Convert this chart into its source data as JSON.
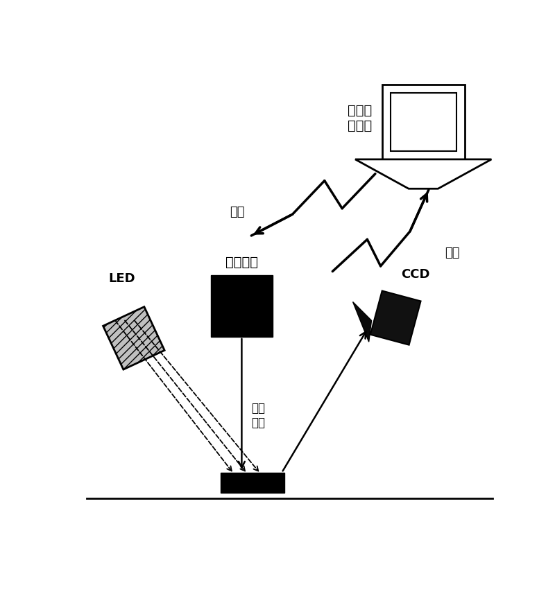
{
  "bg_color": "#ffffff",
  "labels": {
    "computer": "图像处\n理模块",
    "galvo": "振镜系统",
    "led": "LED",
    "ccd": "CCD",
    "laser": "激光\n脉冲",
    "coord": "坐标",
    "image": "图像"
  }
}
